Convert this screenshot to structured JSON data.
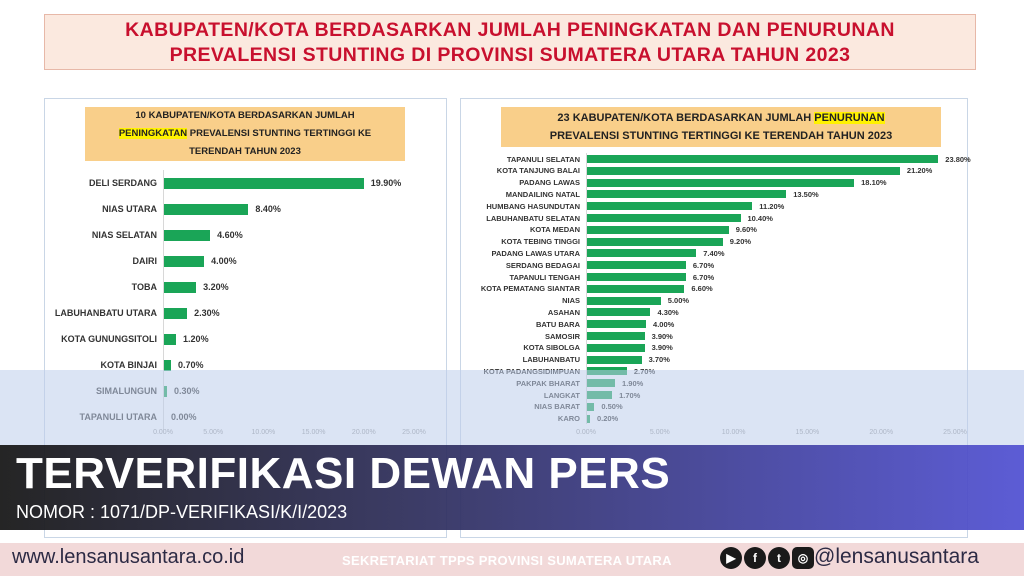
{
  "title": {
    "line1": "KABUPATEN/KOTA BERDASARKAN JUMLAH PENINGKATAN DAN PENURUNAN",
    "line2": "PREVALENSI STUNTING DI PROVINSI SUMATERA UTARA TAHUN 2023"
  },
  "colors": {
    "bar": "#1aa557",
    "title_text": "#c8102e",
    "chart_title_bg": "#f9cf8a",
    "highlight": "#fff200"
  },
  "chart_data": [
    {
      "type": "bar",
      "orientation": "horizontal",
      "title_parts": {
        "a": "10 KABUPATEN/KOTA BERDASARKAN JUMLAH",
        "highlight": "PENINGKATAN",
        "b": "PREVALENSI STUNTING TERTINGGI KE",
        "c": "TERENDAH TAHUN 2023"
      },
      "categories": [
        "DELI SERDANG",
        "NIAS UTARA",
        "NIAS SELATAN",
        "DAIRI",
        "TOBA",
        "LABUHANBATU UTARA",
        "KOTA GUNUNGSITOLI",
        "KOTA BINJAI",
        "SIMALUNGUN",
        "TAPANULI UTARA"
      ],
      "values": [
        19.9,
        8.4,
        4.6,
        4.0,
        3.2,
        2.3,
        1.2,
        0.7,
        0.3,
        0.0
      ],
      "value_labels": [
        "19.90%",
        "8.40%",
        "4.60%",
        "4.00%",
        "3.20%",
        "2.30%",
        "1.20%",
        "0.70%",
        "0.30%",
        "0.00%"
      ],
      "xlim": [
        0,
        25
      ],
      "ticks": [
        "0.00%",
        "5.00%",
        "10.00%",
        "15.00%",
        "20.00%",
        "25.00%"
      ]
    },
    {
      "type": "bar",
      "orientation": "horizontal",
      "title_parts": {
        "a": "23 KABUPATEN/KOTA BERDASARKAN JUMLAH",
        "highlight": "PENURUNAN",
        "b": "PREVALENSI STUNTING TERTINGGI KE TERENDAH TAHUN 2023"
      },
      "categories": [
        "TAPANULI SELATAN",
        "KOTA TANJUNG BALAI",
        "PADANG LAWAS",
        "MANDAILING NATAL",
        "HUMBANG HASUNDUTAN",
        "LABUHANBATU SELATAN",
        "KOTA MEDAN",
        "KOTA TEBING TINGGI",
        "PADANG LAWAS UTARA",
        "SERDANG BEDAGAI",
        "TAPANULI TENGAH",
        "KOTA PEMATANG SIANTAR",
        "NIAS",
        "ASAHAN",
        "BATU BARA",
        "SAMOSIR",
        "KOTA SIBOLGA",
        "LABUHANBATU",
        "KOTA PADANGSIDIMPUAN",
        "PAKPAK BHARAT",
        "LANGKAT",
        "NIAS BARAT",
        "KARO"
      ],
      "values": [
        23.8,
        21.2,
        18.1,
        13.5,
        11.2,
        10.4,
        9.6,
        9.2,
        7.4,
        6.7,
        6.7,
        6.6,
        5.0,
        4.3,
        4.0,
        3.9,
        3.9,
        3.7,
        2.7,
        1.9,
        1.7,
        0.5,
        0.2
      ],
      "value_labels": [
        "23.80%",
        "21.20%",
        "18.10%",
        "13.50%",
        "11.20%",
        "10.40%",
        "9.60%",
        "9.20%",
        "7.40%",
        "6.70%",
        "6.70%",
        "6.60%",
        "5.00%",
        "4.30%",
        "4.00%",
        "3.90%",
        "3.90%",
        "3.70%",
        "2.70%",
        "1.90%",
        "1.70%",
        "0.50%",
        "0.20%"
      ],
      "xlim": [
        0,
        25
      ],
      "ticks": [
        "0.00%",
        "5.00%",
        "10.00%",
        "15.00%",
        "20.00%",
        "25.00%"
      ]
    }
  ],
  "banner": {
    "title": "TERVERIFIKASI DEWAN PERS",
    "subtitle": "NOMOR : 1071/DP-VERIFIKASI/K/I/2023"
  },
  "footer": {
    "website": "www.lensanusantara.co.id",
    "secretariat": "SEKRETARIAT TPPS PROVINSI SUMATERA UTARA",
    "handle": "@lensanusantara",
    "socials": [
      {
        "icon": "youtube-icon",
        "glyph": "▶"
      },
      {
        "icon": "facebook-icon",
        "glyph": "f"
      },
      {
        "icon": "twitter-icon",
        "glyph": "t"
      },
      {
        "icon": "instagram-icon",
        "glyph": "◎"
      }
    ]
  }
}
